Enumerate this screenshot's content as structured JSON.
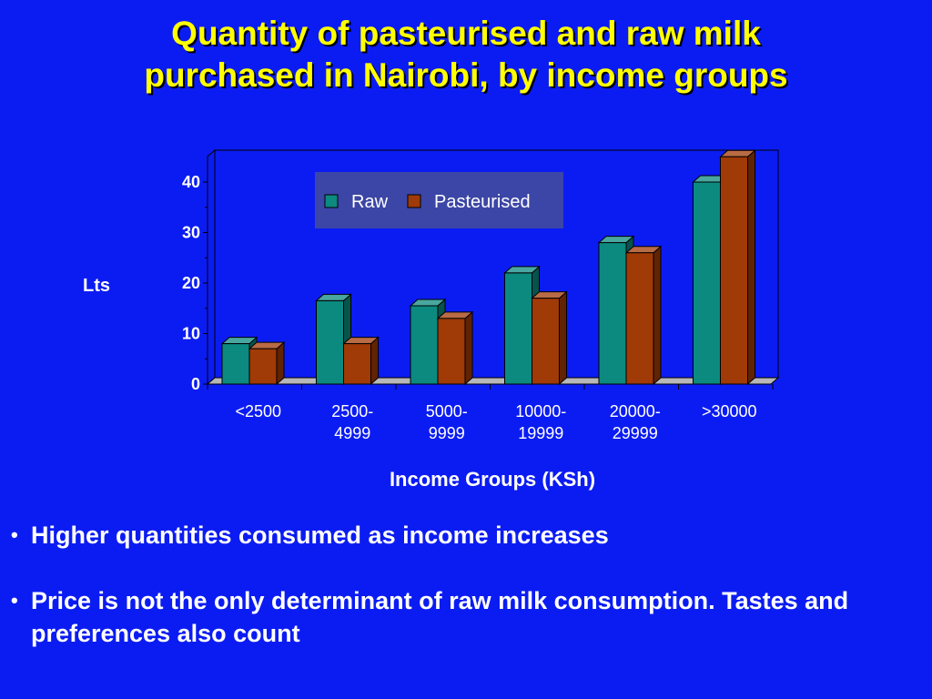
{
  "slide": {
    "title_line1": "Quantity of pasteurised and raw milk",
    "title_line2": "purchased in Nairobi, by income groups",
    "bullets": [
      "Higher quantities consumed as income increases",
      "Price is not the only determinant of raw milk consumption. Tastes and preferences also count"
    ]
  },
  "colors": {
    "background": "#0b1cf2",
    "title": "#ffff00",
    "raw": "#0c8a80",
    "pasteurised": "#a03a06",
    "floor": "#b8b8b8",
    "legend_bg": "#3c46a6"
  },
  "chart_data": {
    "type": "bar",
    "style": "3d-clustered",
    "categories": [
      [
        "<2500"
      ],
      [
        "2500-",
        "4999"
      ],
      [
        "5000-",
        "9999"
      ],
      [
        "10000-",
        "19999"
      ],
      [
        "20000-",
        "29999"
      ],
      [
        ">30000"
      ]
    ],
    "series": [
      {
        "name": "Raw",
        "values": [
          8,
          16.5,
          15.5,
          22,
          28,
          40
        ]
      },
      {
        "name": "Pasteurised",
        "values": [
          7,
          8,
          13,
          17,
          26,
          45
        ]
      }
    ],
    "ylabel": "Lts",
    "xlabel": "Income Groups (KSh)",
    "ylim": [
      0,
      45
    ],
    "yticks": [
      0,
      10,
      20,
      30,
      40
    ],
    "legend_position": "top-center",
    "grid": false
  }
}
